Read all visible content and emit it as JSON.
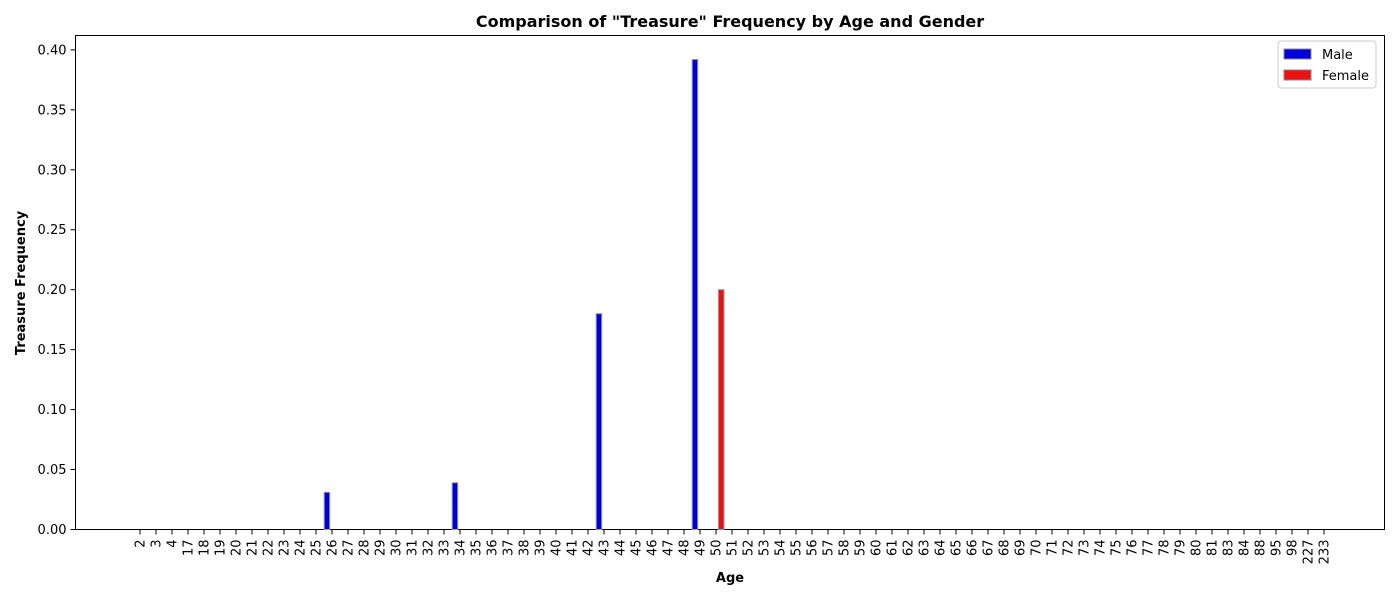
{
  "chart_data": {
    "type": "bar",
    "title": "Comparison of \"Treasure\" Frequency by Age and Gender",
    "xlabel": "Age",
    "ylabel": "Treasure Frequency",
    "ylim": [
      0,
      0.412
    ],
    "yticks": [
      "0.00",
      "0.05",
      "0.10",
      "0.15",
      "0.20",
      "0.25",
      "0.30",
      "0.35",
      "0.40"
    ],
    "categories": [
      "2",
      "3",
      "4",
      "17",
      "18",
      "19",
      "20",
      "21",
      "22",
      "23",
      "24",
      "25",
      "26",
      "27",
      "28",
      "29",
      "30",
      "31",
      "32",
      "33",
      "34",
      "35",
      "36",
      "37",
      "38",
      "39",
      "40",
      "41",
      "42",
      "43",
      "44",
      "45",
      "46",
      "47",
      "48",
      "49",
      "50",
      "51",
      "52",
      "53",
      "54",
      "55",
      "56",
      "57",
      "58",
      "59",
      "60",
      "61",
      "62",
      "63",
      "64",
      "65",
      "66",
      "67",
      "68",
      "69",
      "70",
      "71",
      "72",
      "73",
      "74",
      "75",
      "76",
      "77",
      "78",
      "79",
      "80",
      "81",
      "83",
      "84",
      "88",
      "95",
      "98",
      "227",
      "233"
    ],
    "series": [
      {
        "name": "Male",
        "color": "#0000dd",
        "values": {
          "26": 0.031,
          "34": 0.039,
          "43": 0.18,
          "49": 0.392
        }
      },
      {
        "name": "Female",
        "color": "#ee1111",
        "values": {
          "50": 0.2
        }
      }
    ],
    "legend_position": "top-right",
    "grid": false
  }
}
